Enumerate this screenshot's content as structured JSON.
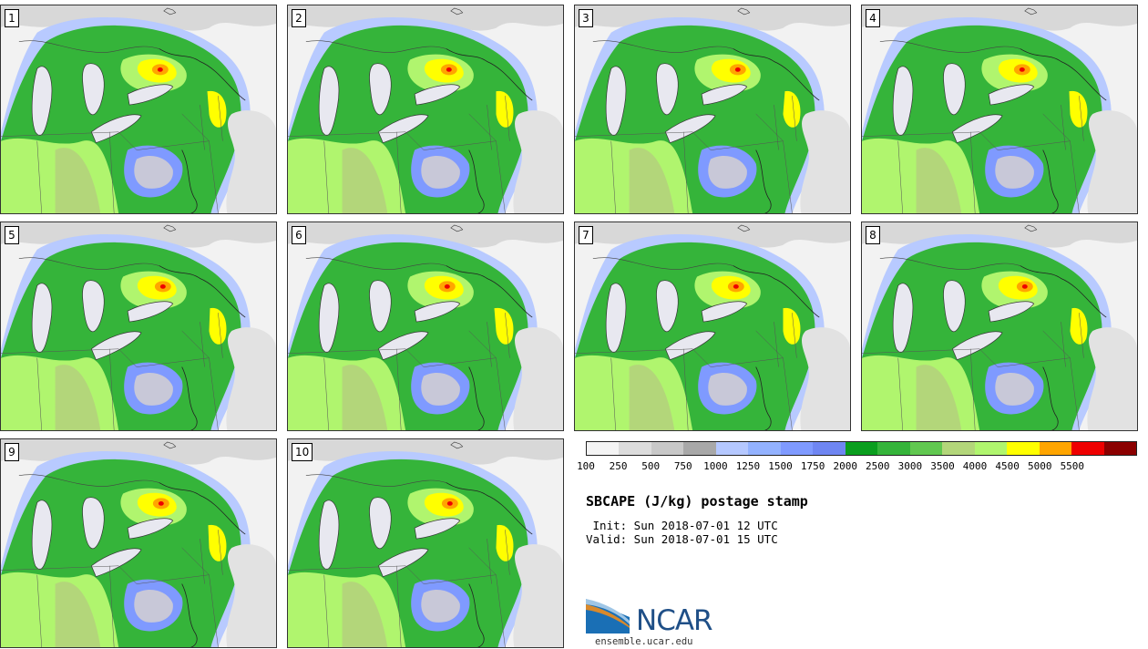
{
  "panels": [
    "1",
    "2",
    "3",
    "4",
    "5",
    "6",
    "7",
    "8",
    "9",
    "10"
  ],
  "colorbar": {
    "colors": [
      "#f4f4f4",
      "#dcdcdc",
      "#c8c8c8",
      "#a8a8a8",
      "#b5c8ff",
      "#93b2ff",
      "#7f9aff",
      "#6f86f2",
      "#0a9e1e",
      "#35b43a",
      "#61c850",
      "#b3d67a",
      "#b0f56e",
      "#ffff00",
      "#ffa500",
      "#ee0000",
      "#8b0000"
    ],
    "tick_labels": [
      "100",
      "250",
      "500",
      "750",
      "1000",
      "1250",
      "1500",
      "1750",
      "2000",
      "2500",
      "3000",
      "3500",
      "4000",
      "4500",
      "5000",
      "5500"
    ]
  },
  "title": "SBCAPE (J/kg) postage stamp",
  "init": " Init: Sun 2018-07-01 12 UTC",
  "valid": "Valid: Sun 2018-07-01 15 UTC",
  "logo": {
    "text": "NCAR",
    "url": "ensemble.ucar.edu"
  }
}
